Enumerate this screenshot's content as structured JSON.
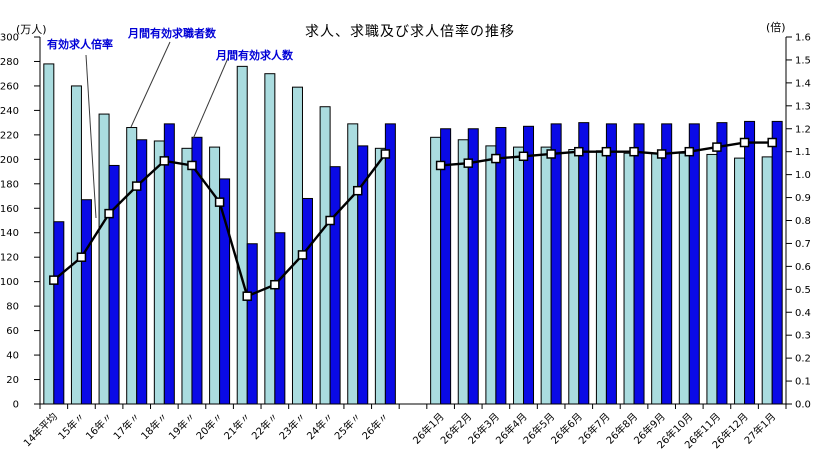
{
  "annotations": {
    "ratio_label": "有効求人倍率",
    "seekers_label": "月間有効求職者数",
    "openings_label": "月間有効求人数"
  },
  "chart_data": {
    "type": "bar+line",
    "title": "求人、求職及び求人倍率の推移",
    "left_axis": {
      "unit": "(万人)",
      "min": 0,
      "max": 300,
      "step": 20
    },
    "right_axis": {
      "unit": "(倍)",
      "min": 0,
      "max": 1.6,
      "step": 0.1
    },
    "grid": false,
    "legend_position": "none",
    "gap_index": 13,
    "categories": [
      "14年平均",
      "15年〃",
      "16年〃",
      "17年〃",
      "18年〃",
      "19年〃",
      "20年〃",
      "21年〃",
      "22年〃",
      "23年〃",
      "24年〃",
      "25年〃",
      "26年〃",
      "",
      "26年1月",
      "26年2月",
      "26年3月",
      "26年4月",
      "26年5月",
      "26年6月",
      "26年7月",
      "26年8月",
      "26年9月",
      "26年10月",
      "26年11月",
      "26年12月",
      "27年1月"
    ],
    "series": [
      {
        "name": "月間有効求職者数",
        "type": "bar",
        "axis": "left",
        "color": "#aadcdf",
        "values": [
          278,
          260,
          237,
          226,
          215,
          209,
          210,
          276,
          270,
          259,
          243,
          229,
          209,
          null,
          218,
          216,
          211,
          210,
          210,
          208,
          207,
          205,
          205,
          205,
          204,
          201,
          202
        ]
      },
      {
        "name": "月間有効求人数",
        "type": "bar",
        "axis": "left",
        "color": "#0a0ae6",
        "values": [
          149,
          167,
          195,
          216,
          229,
          218,
          184,
          131,
          140,
          168,
          194,
          211,
          229,
          null,
          225,
          225,
          226,
          227,
          229,
          230,
          229,
          229,
          229,
          229,
          230,
          231,
          231
        ]
      },
      {
        "name": "有効求人倍率",
        "type": "line",
        "axis": "right",
        "color": "#000000",
        "marker": "white-square",
        "values": [
          0.54,
          0.64,
          0.83,
          0.95,
          1.06,
          1.04,
          0.88,
          0.47,
          0.52,
          0.65,
          0.8,
          0.93,
          1.09,
          null,
          1.04,
          1.05,
          1.07,
          1.08,
          1.09,
          1.1,
          1.1,
          1.1,
          1.09,
          1.1,
          1.12,
          1.14,
          1.14
        ]
      }
    ]
  }
}
